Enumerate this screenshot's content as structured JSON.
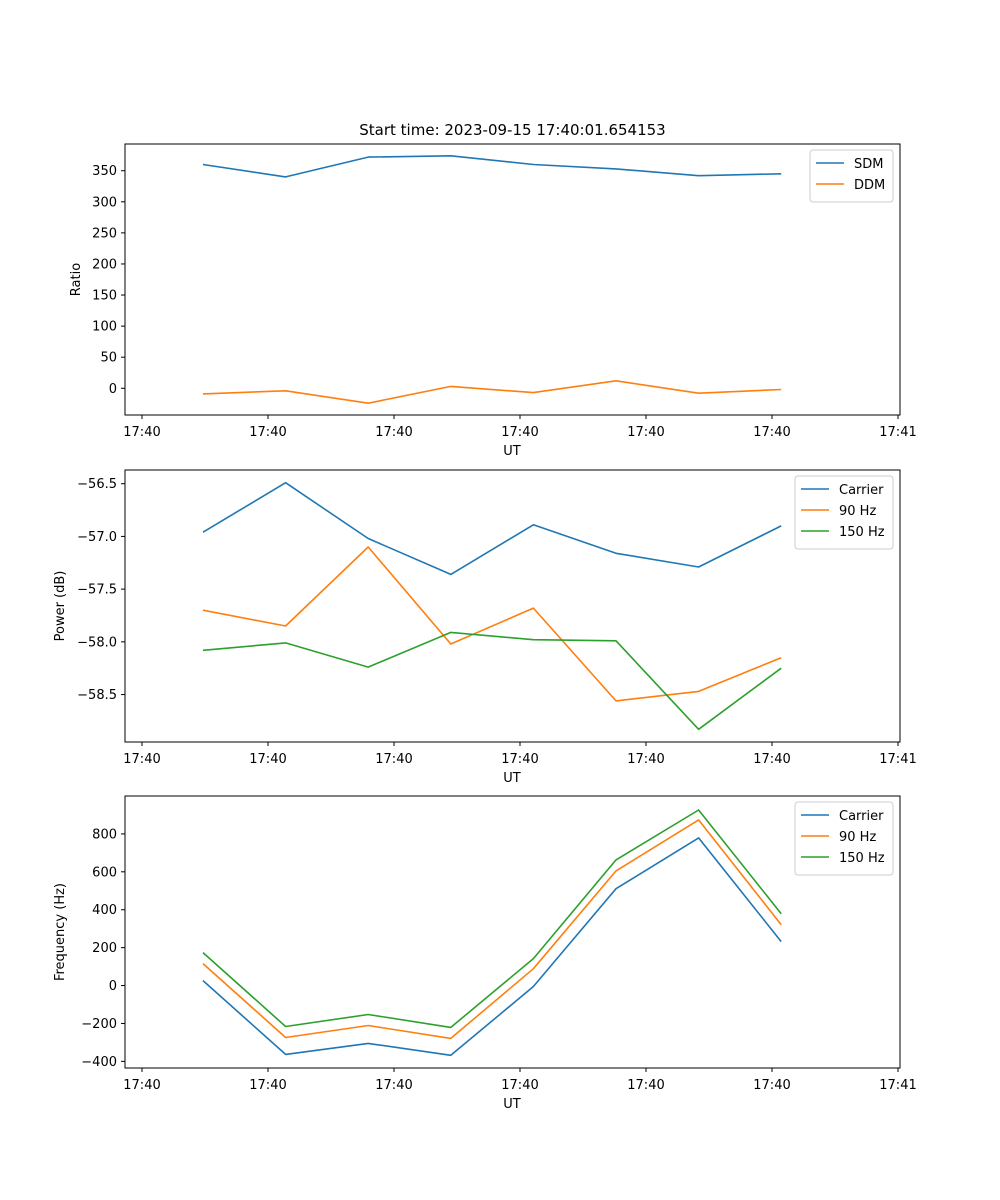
{
  "chart_data": [
    {
      "type": "line",
      "title": "Start time: 2023-09-15 17:40:01.654153",
      "xlabel": "UT",
      "ylabel": "Ratio",
      "x_tick_labels": [
        "17:40",
        "17:40",
        "17:40",
        "17:40",
        "17:40",
        "17:40",
        "17:41"
      ],
      "yticks": [
        0,
        50,
        100,
        150,
        200,
        250,
        300,
        350
      ],
      "ylim": [
        -43,
        393
      ],
      "legend_position": "top-right",
      "grid": false,
      "x_index": [
        0,
        1,
        2,
        3,
        4,
        5,
        6,
        7
      ],
      "series": [
        {
          "name": "SDM",
          "color": "#1f77b4",
          "values": [
            360,
            340,
            372,
            374,
            360,
            353,
            342,
            345
          ]
        },
        {
          "name": "DDM",
          "color": "#ff7f0e",
          "values": [
            -9,
            -4,
            -24,
            3,
            -7,
            12,
            -8,
            -2
          ]
        }
      ]
    },
    {
      "type": "line",
      "title": "",
      "xlabel": "UT",
      "ylabel": "Power (dB)",
      "x_tick_labels": [
        "17:40",
        "17:40",
        "17:40",
        "17:40",
        "17:40",
        "17:40",
        "17:41"
      ],
      "yticks": [
        -58.5,
        -58.0,
        -57.5,
        -57.0,
        -56.5
      ],
      "ytick_labels": [
        "−58.5",
        "−58.0",
        "−57.5",
        "−57.0",
        "−56.5"
      ],
      "ylim": [
        -58.95,
        -56.37
      ],
      "legend_position": "top-right",
      "grid": false,
      "x_index": [
        0,
        1,
        2,
        3,
        4,
        5,
        6,
        7
      ],
      "series": [
        {
          "name": "Carrier",
          "color": "#1f77b4",
          "values": [
            -56.96,
            -56.49,
            -57.02,
            -57.36,
            -56.89,
            -57.16,
            -57.29,
            -56.9
          ]
        },
        {
          "name": "90 Hz",
          "color": "#ff7f0e",
          "values": [
            -57.7,
            -57.85,
            -57.1,
            -58.02,
            -57.68,
            -58.56,
            -58.47,
            -58.15
          ]
        },
        {
          "name": "150 Hz",
          "color": "#2ca02c",
          "values": [
            -58.08,
            -58.01,
            -58.24,
            -57.91,
            -57.98,
            -57.99,
            -58.83,
            -58.25
          ]
        }
      ]
    },
    {
      "type": "line",
      "title": "",
      "xlabel": "UT",
      "ylabel": "Frequency (Hz)",
      "x_tick_labels": [
        "17:40",
        "17:40",
        "17:40",
        "17:40",
        "17:40",
        "17:40",
        "17:41"
      ],
      "yticks": [
        -400,
        -200,
        0,
        200,
        400,
        600,
        800
      ],
      "ytick_labels": [
        "−400",
        "−200",
        "0",
        "200",
        "400",
        "600",
        "800"
      ],
      "ylim": [
        -435,
        1000
      ],
      "legend_position": "top-right",
      "grid": false,
      "x_index": [
        0,
        1,
        2,
        3,
        4,
        5,
        6,
        7
      ],
      "series": [
        {
          "name": "Carrier",
          "color": "#1f77b4",
          "values": [
            26,
            -363,
            -305,
            -368,
            -5,
            511,
            779,
            232
          ]
        },
        {
          "name": "90 Hz",
          "color": "#ff7f0e",
          "values": [
            116,
            -274,
            -211,
            -279,
            89,
            605,
            874,
            321
          ]
        },
        {
          "name": "150 Hz",
          "color": "#2ca02c",
          "values": [
            174,
            -216,
            -153,
            -221,
            142,
            663,
            926,
            379
          ]
        }
      ]
    }
  ]
}
